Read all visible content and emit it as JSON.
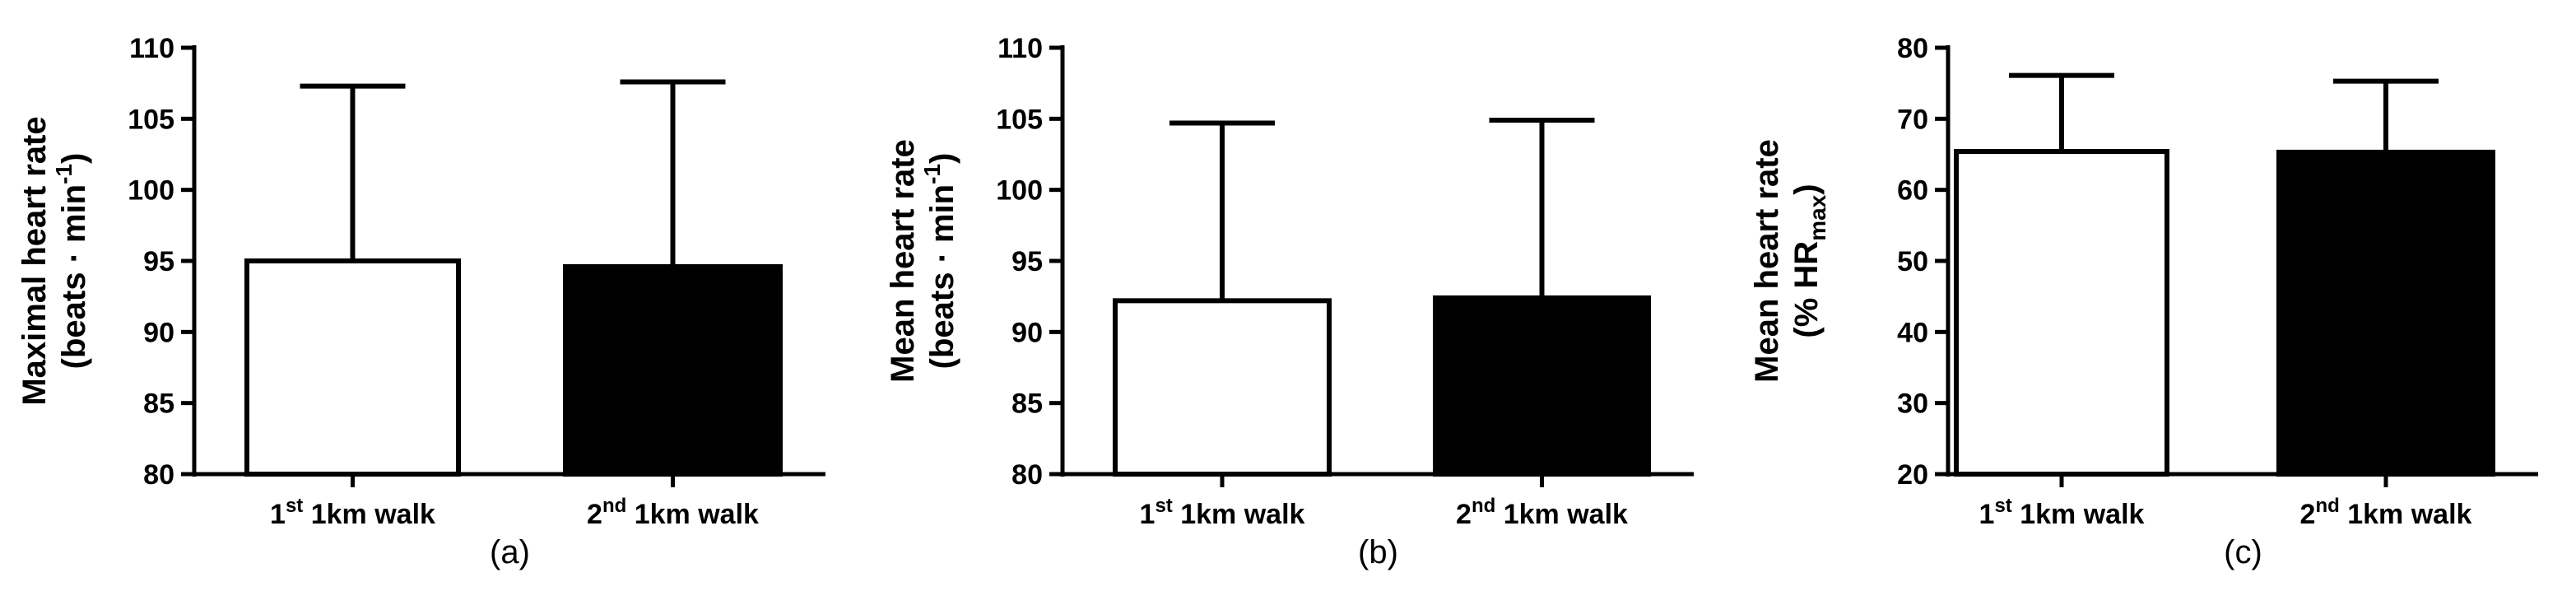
{
  "chart_data": [
    {
      "type": "bar",
      "panel_label": "(a)",
      "ylabel_line1": "Maximal heart rate",
      "ylabel_line2": {
        "pre": "(beats · min",
        "sup": "-1",
        "post": ")"
      },
      "ylim": [
        80,
        110
      ],
      "yticks": [
        "80",
        "85",
        "90",
        "95",
        "100",
        "105",
        "110"
      ],
      "categories": [
        {
          "prefix": "1",
          "sup": "st",
          "suffix": " 1km walk"
        },
        {
          "prefix": "2",
          "sup": "nd",
          "suffix": " 1km walk"
        }
      ],
      "values": [
        95.0,
        94.6
      ],
      "errors": [
        12.3,
        13.0
      ],
      "colors": [
        "#ffffff",
        "#000000"
      ]
    },
    {
      "type": "bar",
      "panel_label": "(b)",
      "ylabel_line1": "Mean heart rate",
      "ylabel_line2": {
        "pre": "(beats · min",
        "sup": "-1",
        "post": ")"
      },
      "ylim": [
        80,
        110
      ],
      "yticks": [
        "80",
        "85",
        "90",
        "95",
        "100",
        "105",
        "110"
      ],
      "categories": [
        {
          "prefix": "1",
          "sup": "st",
          "suffix": " 1km walk"
        },
        {
          "prefix": "2",
          "sup": "nd",
          "suffix": " 1km walk"
        }
      ],
      "values": [
        92.2,
        92.4
      ],
      "errors": [
        12.5,
        12.5
      ],
      "colors": [
        "#ffffff",
        "#000000"
      ]
    },
    {
      "type": "bar",
      "panel_label": "(c)",
      "ylabel_line1": "Mean heart rate",
      "ylabel_line2": {
        "pre": "(% HR",
        "sub": "max",
        "post": ")"
      },
      "ylim": [
        20,
        80
      ],
      "yticks": [
        "20",
        "30",
        "40",
        "50",
        "60",
        "70",
        "80"
      ],
      "categories": [
        {
          "prefix": "1",
          "sup": "st",
          "suffix": " 1km walk"
        },
        {
          "prefix": "2",
          "sup": "nd",
          "suffix": " 1km walk"
        }
      ],
      "values": [
        65.4,
        65.3
      ],
      "errors": [
        10.7,
        10.0
      ],
      "colors": [
        "#ffffff",
        "#000000"
      ]
    }
  ]
}
